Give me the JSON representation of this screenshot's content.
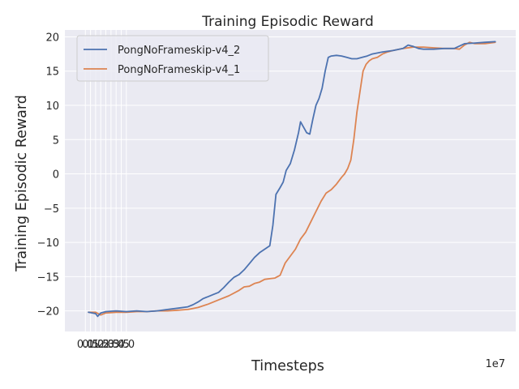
{
  "chart_data": {
    "type": "line",
    "title": "Training Episodic Reward",
    "xlabel": "Timesteps",
    "ylabel": "Training Episodic Reward",
    "x_offset_label": "1e7",
    "xlim": [
      -2.0,
      42.0
    ],
    "ylim": [
      -23.0,
      21.0
    ],
    "x_scale_factor": 10000000,
    "x_ticks": [
      0.0,
      0.5,
      1.0,
      1.5,
      2.0,
      2.5,
      3.0,
      3.5,
      4.0
    ],
    "x_tick_labels": [
      "0.0",
      "0.5",
      "1.0",
      "1.5",
      "2.0",
      "2.5",
      "3.0",
      "3.5",
      "4.0"
    ],
    "y_ticks": [
      -20,
      -15,
      -10,
      -5,
      0,
      5,
      10,
      15,
      20
    ],
    "y_tick_labels": [
      "−20",
      "−15",
      "−10",
      "−5",
      "0",
      "5",
      "10",
      "15",
      "20"
    ],
    "grid": true,
    "legend_position": "top-left",
    "colors": {
      "background": "#eaeaf2",
      "grid": "#ffffff"
    },
    "series": [
      {
        "name": "PongNoFrameskip-v4_2",
        "color": "#4c72b0",
        "x": [
          0.3,
          1.0,
          1.2,
          1.5,
          2.0,
          3.0,
          4.0,
          5.0,
          6.0,
          7.0,
          8.0,
          9.0,
          10.0,
          10.5,
          11.0,
          11.5,
          12.0,
          12.5,
          13.0,
          13.5,
          14.0,
          14.5,
          15.0,
          15.5,
          16.0,
          16.5,
          17.0,
          17.5,
          18.0,
          18.3,
          18.6,
          19.0,
          19.3,
          19.6,
          20.0,
          20.4,
          20.8,
          21.0,
          21.3,
          21.6,
          21.9,
          22.2,
          22.5,
          22.8,
          23.1,
          23.4,
          23.7,
          24.0,
          24.5,
          25.0,
          25.5,
          26.0,
          26.5,
          27.0,
          27.5,
          28.0,
          29.0,
          30.0,
          31.0,
          31.5,
          32.0,
          32.5,
          33.0,
          34.0,
          35.0,
          36.0,
          37.0,
          38.0,
          39.0,
          40.0
        ],
        "y": [
          -20.2,
          -20.4,
          -20.8,
          -20.3,
          -20.1,
          -20.0,
          -20.1,
          -20.0,
          -20.1,
          -20.0,
          -19.8,
          -19.6,
          -19.4,
          -19.1,
          -18.7,
          -18.2,
          -17.9,
          -17.6,
          -17.3,
          -16.6,
          -15.8,
          -15.1,
          -14.7,
          -14.0,
          -13.1,
          -12.2,
          -11.5,
          -11.0,
          -10.5,
          -7.5,
          -3.0,
          -2.0,
          -1.2,
          0.5,
          1.5,
          3.5,
          6.0,
          7.6,
          6.8,
          6.0,
          5.8,
          8.0,
          10.0,
          11.0,
          12.5,
          15.0,
          17.0,
          17.2,
          17.3,
          17.2,
          17.0,
          16.8,
          16.8,
          17.0,
          17.2,
          17.5,
          17.8,
          18.0,
          18.3,
          18.8,
          18.6,
          18.3,
          18.2,
          18.2,
          18.3,
          18.3,
          19.0,
          19.1,
          19.2,
          19.3
        ]
      },
      {
        "name": "PongNoFrameskip-v4_1",
        "color": "#dd8452",
        "x": [
          0.3,
          1.0,
          1.5,
          2.0,
          3.0,
          4.0,
          5.0,
          6.0,
          7.0,
          8.0,
          9.0,
          10.0,
          11.0,
          12.0,
          13.0,
          14.0,
          15.0,
          15.5,
          16.0,
          16.5,
          17.0,
          17.5,
          18.0,
          18.5,
          19.0,
          19.5,
          20.0,
          20.5,
          21.0,
          21.5,
          22.0,
          22.5,
          23.0,
          23.5,
          24.0,
          24.5,
          25.0,
          25.3,
          25.6,
          25.9,
          26.2,
          26.5,
          26.8,
          27.1,
          27.4,
          27.7,
          28.0,
          28.5,
          29.0,
          29.5,
          30.0,
          31.0,
          32.0,
          33.0,
          34.0,
          35.0,
          36.0,
          36.5,
          37.0,
          37.5,
          38.0,
          39.0,
          40.0
        ],
        "y": [
          -20.2,
          -20.2,
          -20.6,
          -20.3,
          -20.2,
          -20.2,
          -20.1,
          -20.1,
          -20.0,
          -20.0,
          -19.9,
          -19.8,
          -19.5,
          -19.0,
          -18.4,
          -17.8,
          -17.0,
          -16.5,
          -16.4,
          -16.0,
          -15.8,
          -15.4,
          -15.3,
          -15.2,
          -14.8,
          -13.0,
          -12.0,
          -11.0,
          -9.5,
          -8.5,
          -7.0,
          -5.5,
          -4.0,
          -2.8,
          -2.3,
          -1.5,
          -0.5,
          0.0,
          0.8,
          2.0,
          5.0,
          9.0,
          12.0,
          15.0,
          16.0,
          16.5,
          16.8,
          17.0,
          17.5,
          17.8,
          18.0,
          18.3,
          18.5,
          18.5,
          18.4,
          18.3,
          18.3,
          18.2,
          18.8,
          19.2,
          19.0,
          19.0,
          19.2
        ]
      }
    ]
  }
}
